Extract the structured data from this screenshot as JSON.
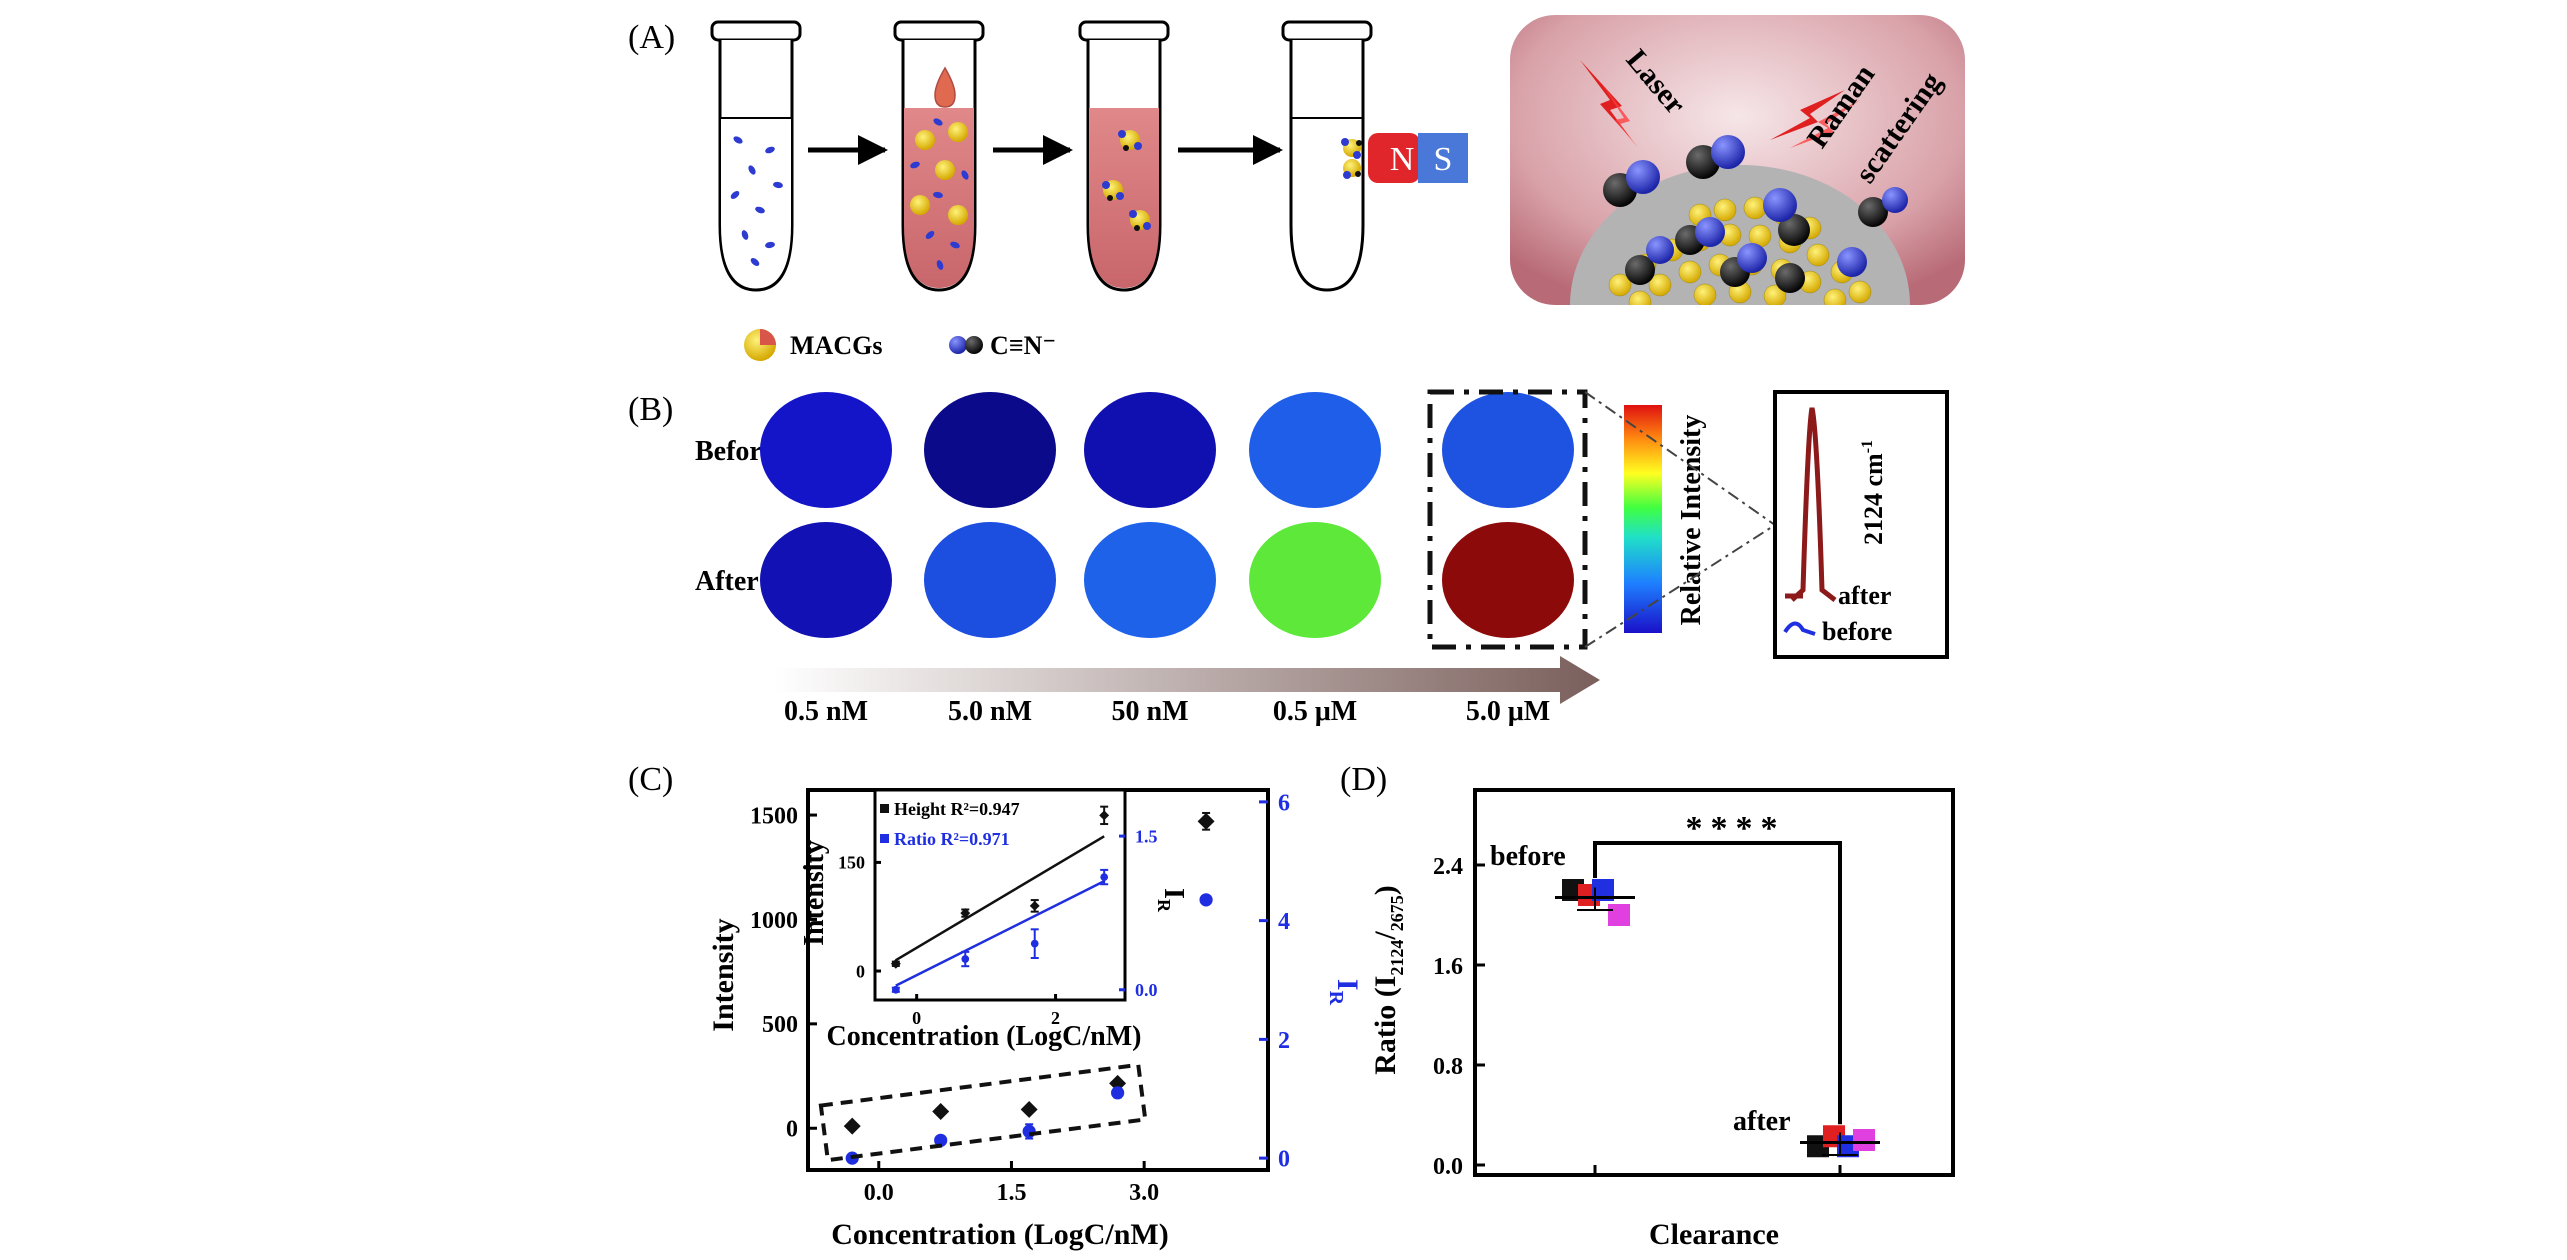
{
  "panels": {
    "a": "(A)",
    "b": "(B)",
    "c": "(C)",
    "d": "(D)"
  },
  "panel_a": {
    "legend": [
      "MACGs",
      "C≡N⁻"
    ],
    "magnet": [
      "N",
      "S"
    ],
    "inset_labels": [
      "Laser",
      "Raman",
      "scattering"
    ],
    "colors": {
      "solution": "#d97b7e",
      "gold": "#f2d20a",
      "nitrogen": "#2d3bd0",
      "carbon": "#1a1a1a",
      "magnet_n": "#e0262a",
      "magnet_s": "#4a78d8"
    }
  },
  "panel_b": {
    "row_labels": [
      "Before",
      "After"
    ],
    "concentrations": [
      "0.5 nM",
      "5.0 nM",
      "50 nM",
      "0.5 μM",
      "5.0 μM"
    ],
    "before_colors": [
      "#1414c8",
      "#0a0a8a",
      "#1010b0",
      "#1e5ee8",
      "#1e52e0"
    ],
    "after_colors": [
      "#1212b4",
      "#1c4ee0",
      "#1e62ea",
      "#5ee83a",
      "#8c0a0a"
    ],
    "colorbar_label": "Relative Intensity",
    "spectrum_labels": {
      "wavenumber": "2124 cm",
      "wavenumber_exp": "-1",
      "after": "after",
      "before": "before"
    }
  },
  "panel_c": {
    "main_chart": {
      "type": "scatter",
      "xlabel": "Concentration (LogC/nM)",
      "ylabel_left": "Intensity",
      "ylabel_right_base": "I",
      "ylabel_right_sub": "R",
      "xticks": [
        "0.0",
        "1.5",
        "3.0"
      ],
      "xtick_values": [
        0.0,
        1.5,
        3.0
      ],
      "yticks_left": [
        "0",
        "500",
        "1000",
        "1500"
      ],
      "ytick_left_values": [
        0,
        500,
        1000,
        1500
      ],
      "yticks_right": [
        "0",
        "2",
        "4",
        "6"
      ],
      "ytick_right_values": [
        0,
        2,
        4,
        6
      ],
      "xlim": [
        -0.8,
        4.4
      ],
      "ylim_left": [
        -200,
        1620
      ],
      "ylim_right": [
        -0.2,
        6.2
      ],
      "series": [
        {
          "name": "Height",
          "axis": "left",
          "color": "#111111",
          "x": [
            -0.3,
            0.7,
            1.7,
            2.7,
            3.7
          ],
          "y": [
            10,
            80,
            90,
            215,
            1470
          ],
          "err": [
            4,
            6,
            8,
            15,
            40
          ]
        },
        {
          "name": "Ratio",
          "axis": "right",
          "color": "#1e2ee0",
          "x": [
            -0.3,
            0.7,
            1.7,
            2.7,
            3.7
          ],
          "y": [
            0.0,
            0.3,
            0.45,
            1.1,
            4.35
          ],
          "err": [
            0.03,
            0.06,
            0.12,
            0.08,
            0.05
          ]
        }
      ]
    },
    "inset_chart": {
      "type": "scatter",
      "xlabel": "Concentration (LogC/nM)",
      "ylabel_left": "Intensity",
      "ylabel_right_base": "I",
      "ylabel_right_sub": "R",
      "xticks": [
        "0",
        "2"
      ],
      "xtick_values": [
        0,
        2
      ],
      "yticks_left": [
        "0",
        "150"
      ],
      "ytick_left_values": [
        0,
        150
      ],
      "yticks_right": [
        "0.0",
        "1.5"
      ],
      "ytick_right_values": [
        0.0,
        1.5
      ],
      "xlim": [
        -0.6,
        3.0
      ],
      "ylim_left": [
        -40,
        250
      ],
      "ylim_right": [
        -0.1,
        1.95
      ],
      "legend": [
        "Height R²=0.947",
        "Ratio R²=0.971"
      ],
      "series": [
        {
          "name": "Height",
          "axis": "left",
          "color": "#111111",
          "x": [
            -0.3,
            0.7,
            1.7,
            2.7
          ],
          "y": [
            10,
            80,
            90,
            215
          ],
          "err": [
            3,
            5,
            8,
            12
          ],
          "fit": [
            -0.3,
            15,
            2.7,
            186
          ]
        },
        {
          "name": "Ratio",
          "axis": "right",
          "color": "#1e2ee0",
          "x": [
            -0.3,
            0.7,
            1.7,
            2.7
          ],
          "y": [
            0.0,
            0.3,
            0.45,
            1.1
          ],
          "err": [
            0.02,
            0.07,
            0.14,
            0.07
          ],
          "fit": [
            -0.3,
            0.04,
            2.7,
            1.06
          ]
        }
      ]
    }
  },
  "panel_d": {
    "chart": {
      "type": "scatter",
      "xlabel": "Clearance",
      "ylabel_base": "Ratio (I",
      "ylabel_sub": "2124",
      "ylabel_mid": "/",
      "ylabel_sub2": "2675",
      "ylabel_end": ")",
      "yticks": [
        "0.0",
        "0.8",
        "1.6",
        "2.4"
      ],
      "ytick_values": [
        0.0,
        0.8,
        1.6,
        2.4
      ],
      "ylim": [
        -0.08,
        3.0
      ],
      "group_labels": [
        "before",
        "after"
      ],
      "significance": "****",
      "colors": [
        "#111111",
        "#e02020",
        "#2030e0",
        "#e040e0"
      ],
      "before_values": [
        2.2,
        2.16,
        2.2,
        2.0
      ],
      "after_values": [
        0.15,
        0.23,
        0.15,
        0.2
      ],
      "before_mean": 2.14,
      "after_mean": 0.18
    }
  }
}
